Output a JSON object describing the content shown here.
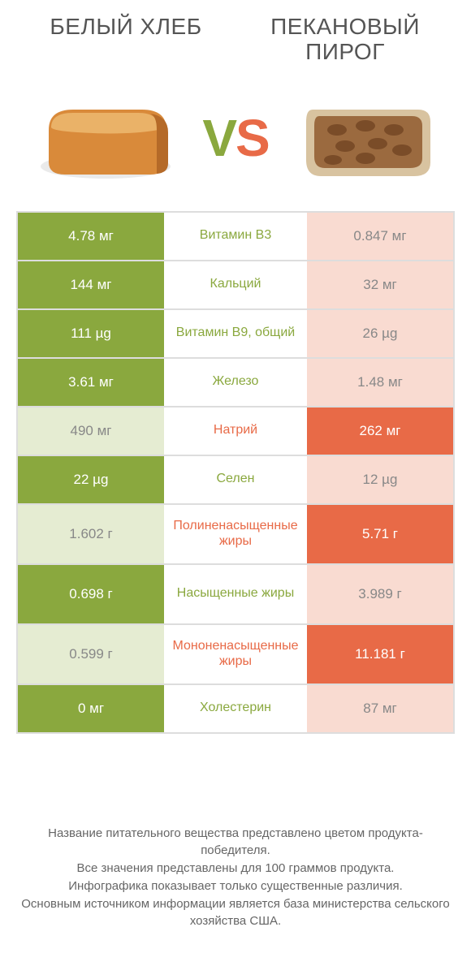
{
  "titles": {
    "left": "БЕЛЫЙ ХЛЕБ",
    "right": "ПЕКАНОВЫЙ ПИРОГ"
  },
  "vs": {
    "v": "V",
    "s": "S"
  },
  "colors": {
    "green": "#8aa83e",
    "orange": "#e86a47",
    "light_green": "#e5ecd2",
    "light_orange": "#f9dbd1",
    "light_text": "#888888",
    "border": "#dddddd",
    "title_text": "#555555",
    "foot_text": "#666666"
  },
  "rows": [
    {
      "nutrient": "Витамин B3",
      "left": "4.78 мг",
      "right": "0.847 мг",
      "winner": "left",
      "tall": false
    },
    {
      "nutrient": "Кальций",
      "left": "144 мг",
      "right": "32 мг",
      "winner": "left",
      "tall": false
    },
    {
      "nutrient": "Витамин B9, общий",
      "left": "111 µg",
      "right": "26 µg",
      "winner": "left",
      "tall": false
    },
    {
      "nutrient": "Железо",
      "left": "3.61 мг",
      "right": "1.48 мг",
      "winner": "left",
      "tall": false
    },
    {
      "nutrient": "Натрий",
      "left": "490 мг",
      "right": "262 мг",
      "winner": "right",
      "tall": false
    },
    {
      "nutrient": "Селен",
      "left": "22 µg",
      "right": "12 µg",
      "winner": "left",
      "tall": false
    },
    {
      "nutrient": "Полиненасыщенные жиры",
      "left": "1.602 г",
      "right": "5.71 г",
      "winner": "right",
      "tall": true
    },
    {
      "nutrient": "Насыщенные жиры",
      "left": "0.698 г",
      "right": "3.989 г",
      "winner": "left",
      "tall": true
    },
    {
      "nutrient": "Мононенасыщенные жиры",
      "left": "0.599 г",
      "right": "11.181 г",
      "winner": "right",
      "tall": true
    },
    {
      "nutrient": "Холестерин",
      "left": "0 мг",
      "right": "87 мг",
      "winner": "left",
      "tall": false
    }
  ],
  "footnote": {
    "l1": "Название питательного вещества представлено цветом продукта-победителя.",
    "l2": "Все значения представлены для 100 граммов продукта.",
    "l3": "Инфографика показывает только существенные различия.",
    "l4": "Основным источником информации является база министерства сельского хозяйства США."
  }
}
